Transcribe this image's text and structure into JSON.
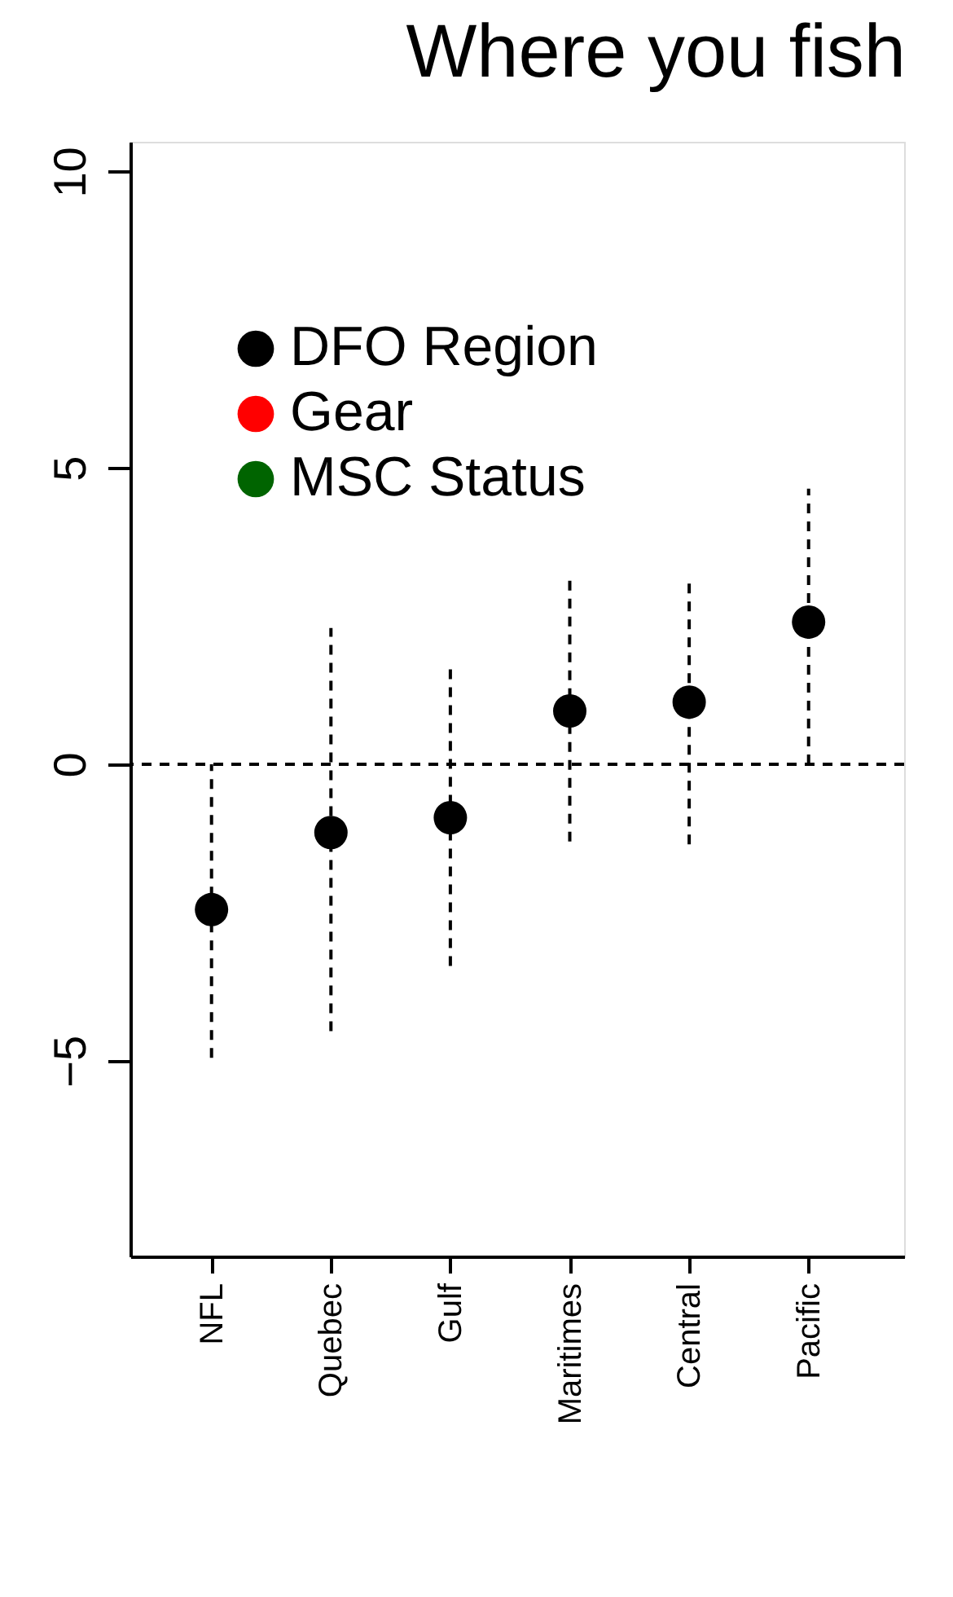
{
  "chart_data": {
    "type": "scatter",
    "title": "Where you fish",
    "categories": [
      "NFL",
      "Quebec",
      "Gulf",
      "Maritimes",
      "Central",
      "Pacific"
    ],
    "series": [
      {
        "name": "DFO Region",
        "color": "#000000",
        "values": [
          -2.45,
          -1.15,
          -0.9,
          0.9,
          1.05,
          2.4
        ],
        "errors": [
          [
            -4.95,
            0
          ],
          [
            -4.5,
            2.3
          ],
          [
            -3.4,
            1.65
          ],
          [
            -1.3,
            3.1
          ],
          [
            -1.35,
            3.1
          ],
          [
            0,
            4.65
          ]
        ]
      },
      {
        "name": "Gear",
        "color": "#ff0000",
        "values": [
          null,
          null,
          null,
          null,
          null,
          null
        ]
      },
      {
        "name": "MSC Status",
        "color": "#006400",
        "values": [
          null,
          null,
          null,
          null,
          null,
          null
        ]
      }
    ],
    "ylim": [
      -8.3,
      10.5
    ],
    "yticks": [
      -5,
      0,
      5,
      10
    ],
    "ref_lines": [
      {
        "axis": "y",
        "value": 0,
        "line_style": "dashed"
      }
    ],
    "line_style": "dashed",
    "marker": "circle",
    "legend": "top left",
    "grid": false
  }
}
